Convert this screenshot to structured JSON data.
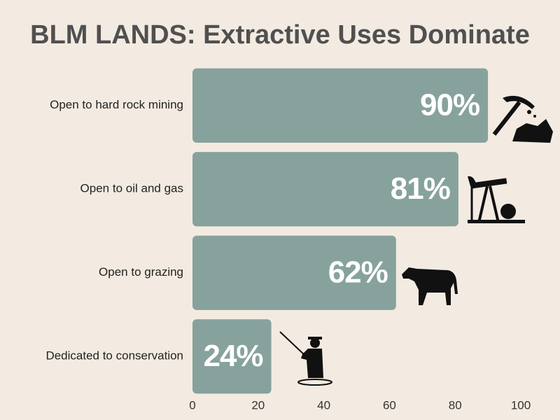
{
  "chart_data": {
    "type": "bar",
    "orientation": "horizontal",
    "title": "BLM LANDS: Extractive Uses Dominate",
    "categories": [
      "Open to hard rock mining",
      "Open to oil and gas",
      "Open to grazing",
      "Dedicated to conservation"
    ],
    "values": [
      90,
      81,
      62,
      24
    ],
    "value_labels": [
      "90%",
      "81%",
      "62%",
      "24%"
    ],
    "color": "#87a29c",
    "xlim": [
      0,
      100
    ],
    "xticks": [
      0,
      20,
      40,
      60,
      80,
      100
    ],
    "grid": false
  }
}
